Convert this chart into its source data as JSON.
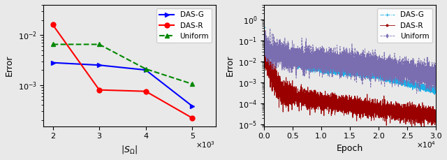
{
  "left": {
    "xlabel": "$|S_\\Omega|$",
    "ylabel": "Error",
    "xlim": [
      1800.0,
      5500.0
    ],
    "xticks": [
      2000,
      3000,
      4000,
      5000
    ],
    "xtick_labels": [
      "2",
      "3",
      "4",
      "5"
    ],
    "das_g": {
      "x": [
        2000,
        3000,
        4000,
        5000
      ],
      "y": [
        0.0028,
        0.0025,
        0.002,
        0.00038
      ],
      "color": "blue",
      "marker": ">",
      "label": "DAS-G"
    },
    "das_r": {
      "x": [
        2000,
        3000,
        4000,
        5000
      ],
      "y": [
        0.016,
        0.0008,
        0.00075,
        0.00022
      ],
      "color": "red",
      "marker": "o",
      "label": "DAS-R"
    },
    "uniform": {
      "x": [
        2000,
        3000,
        4000,
        5000
      ],
      "y": [
        0.0065,
        0.0065,
        0.0021,
        0.00105
      ],
      "color": "#008800",
      "marker": "^",
      "label": "Uniform",
      "linestyle": "--"
    }
  },
  "right": {
    "xlabel": "Epoch",
    "ylabel": "Error",
    "xlim": [
      0,
      30000
    ],
    "ylim": [
      8e-06,
      5
    ],
    "xticks": [
      0,
      5000,
      10000,
      15000,
      20000,
      25000,
      30000
    ],
    "xtick_labels": [
      "0.0",
      "0.5",
      "1.0",
      "1.5",
      "2.0",
      "2.5",
      "3.0"
    ],
    "das_g_color": "#1ab0e8",
    "das_r_color": "#9b0000",
    "uniform_color": "#7a6db0"
  },
  "bg_color": "#e9e9e9",
  "legend_fontsize": 7.5,
  "label_fontsize": 9,
  "tick_fontsize": 8
}
